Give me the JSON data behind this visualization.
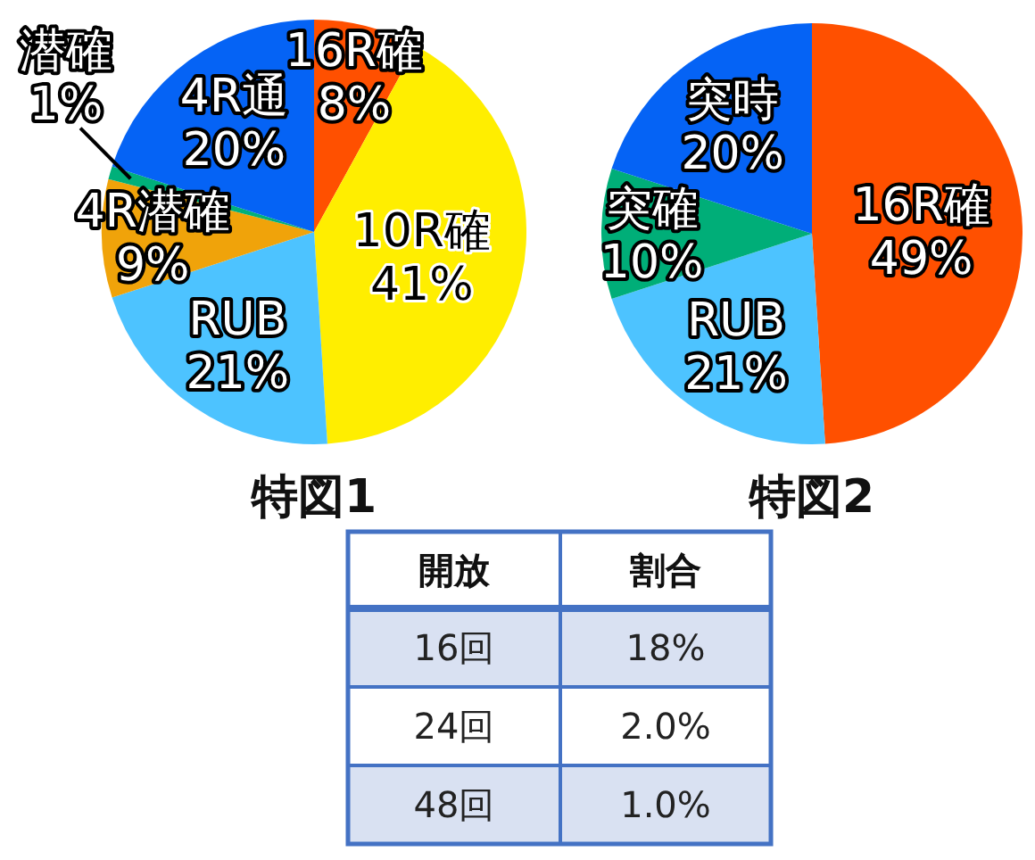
{
  "chart_data": [
    {
      "type": "pie",
      "title": "特図1",
      "categories": [
        "16R確",
        "10R確",
        "RUB",
        "4R潜確",
        "潜確",
        "4R通"
      ],
      "values": [
        8,
        41,
        21,
        9,
        1,
        20
      ],
      "value_labels": [
        "8%",
        "41%",
        "21%",
        "9%",
        "1%",
        "20%"
      ],
      "colors": [
        "#ff5000",
        "#ffee00",
        "#4dc3ff",
        "#f0a30a",
        "#00b07a",
        "#0563f5"
      ]
    },
    {
      "type": "pie",
      "title": "特図2",
      "categories": [
        "16R確",
        "RUB",
        "突確",
        "突時"
      ],
      "values": [
        49,
        21,
        10,
        20
      ],
      "value_labels": [
        "49%",
        "21%",
        "10%",
        "20%"
      ],
      "colors": [
        "#ff5000",
        "#4dc3ff",
        "#00ae78",
        "#0563f5"
      ]
    },
    {
      "type": "other",
      "xlabel": "開放",
      "ylabel": "割合",
      "categories": [
        "16回",
        "24回",
        "48回"
      ],
      "values": [
        18,
        2.0,
        1.0
      ],
      "value_labels": [
        "18%",
        "2.0%",
        "1.0%"
      ]
    }
  ]
}
